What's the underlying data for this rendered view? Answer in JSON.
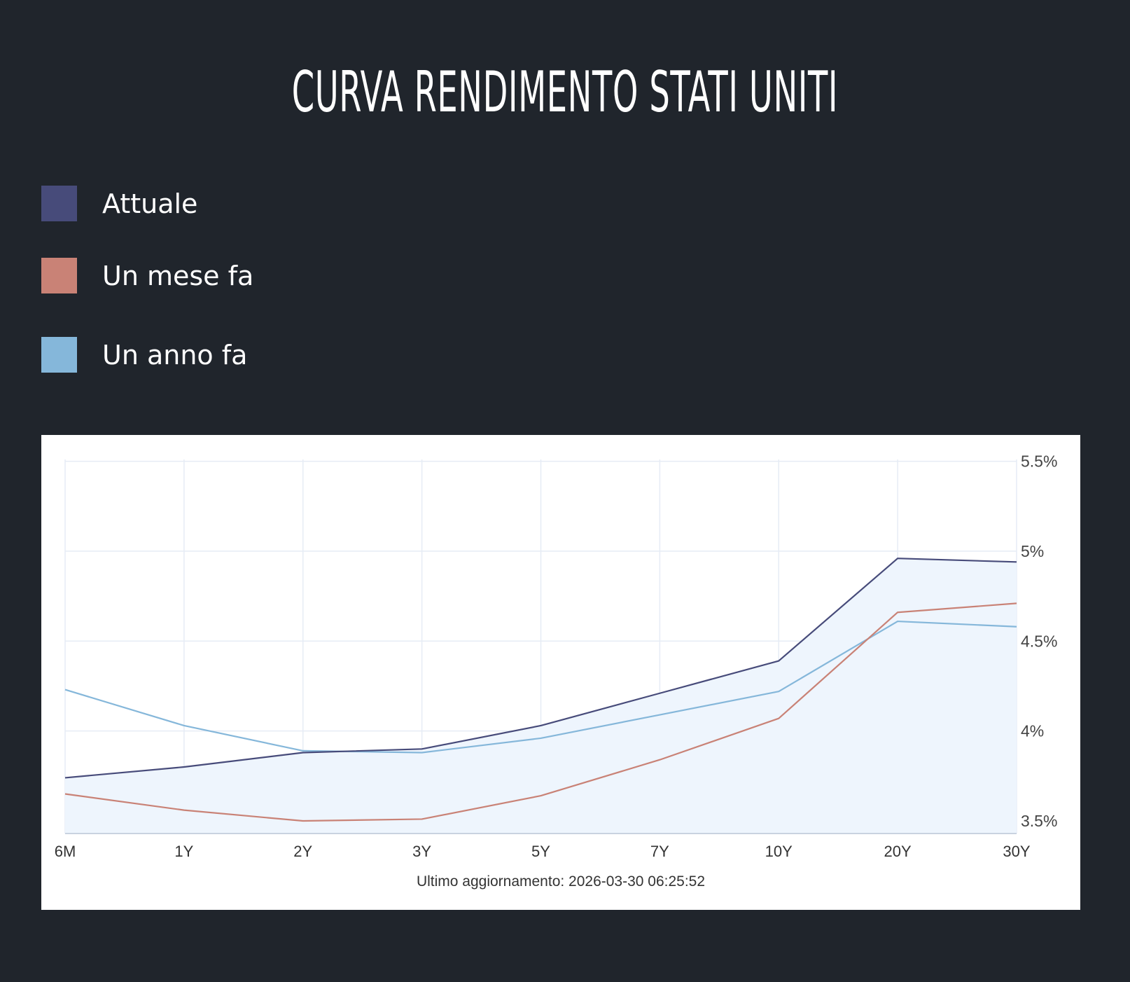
{
  "title": "CURVA RENDIMENTO STATI UNITI",
  "legend": [
    {
      "label": "Attuale",
      "color": "#474b7a"
    },
    {
      "label": "Un mese fa",
      "color": "#c98276"
    },
    {
      "label": "Un anno fa",
      "color": "#85b7da"
    }
  ],
  "chart_data": {
    "type": "line",
    "categories": [
      "6M",
      "1Y",
      "2Y",
      "3Y",
      "5Y",
      "7Y",
      "10Y",
      "20Y",
      "30Y"
    ],
    "series": [
      {
        "name": "Attuale",
        "color": "#474b7a",
        "values": [
          3.74,
          3.8,
          3.88,
          3.9,
          4.03,
          4.21,
          4.39,
          4.96,
          4.94
        ]
      },
      {
        "name": "Un mese fa",
        "color": "#c98276",
        "values": [
          3.65,
          3.56,
          3.5,
          3.51,
          3.64,
          3.84,
          4.07,
          4.66,
          4.71
        ]
      },
      {
        "name": "Un anno fa",
        "color": "#85b7da",
        "values": [
          4.23,
          4.03,
          3.89,
          3.88,
          3.96,
          4.09,
          4.22,
          4.61,
          4.58
        ]
      }
    ],
    "fill_series": "Attuale",
    "fill_color": "#eef5fd",
    "ylim": [
      3.43,
      5.51
    ],
    "yticks": [
      {
        "value": 5.5,
        "label": "5.5%"
      },
      {
        "value": 5.0,
        "label": "5%"
      },
      {
        "value": 4.5,
        "label": "4.5%"
      },
      {
        "value": 4.0,
        "label": "4%"
      },
      {
        "value": 3.5,
        "label": "3.5%"
      }
    ],
    "y_axis_position": "right",
    "grid": true,
    "legend_position": "top-left"
  },
  "footer_note": "Ultimo aggiornamento: 2026-03-30 06:25:52"
}
